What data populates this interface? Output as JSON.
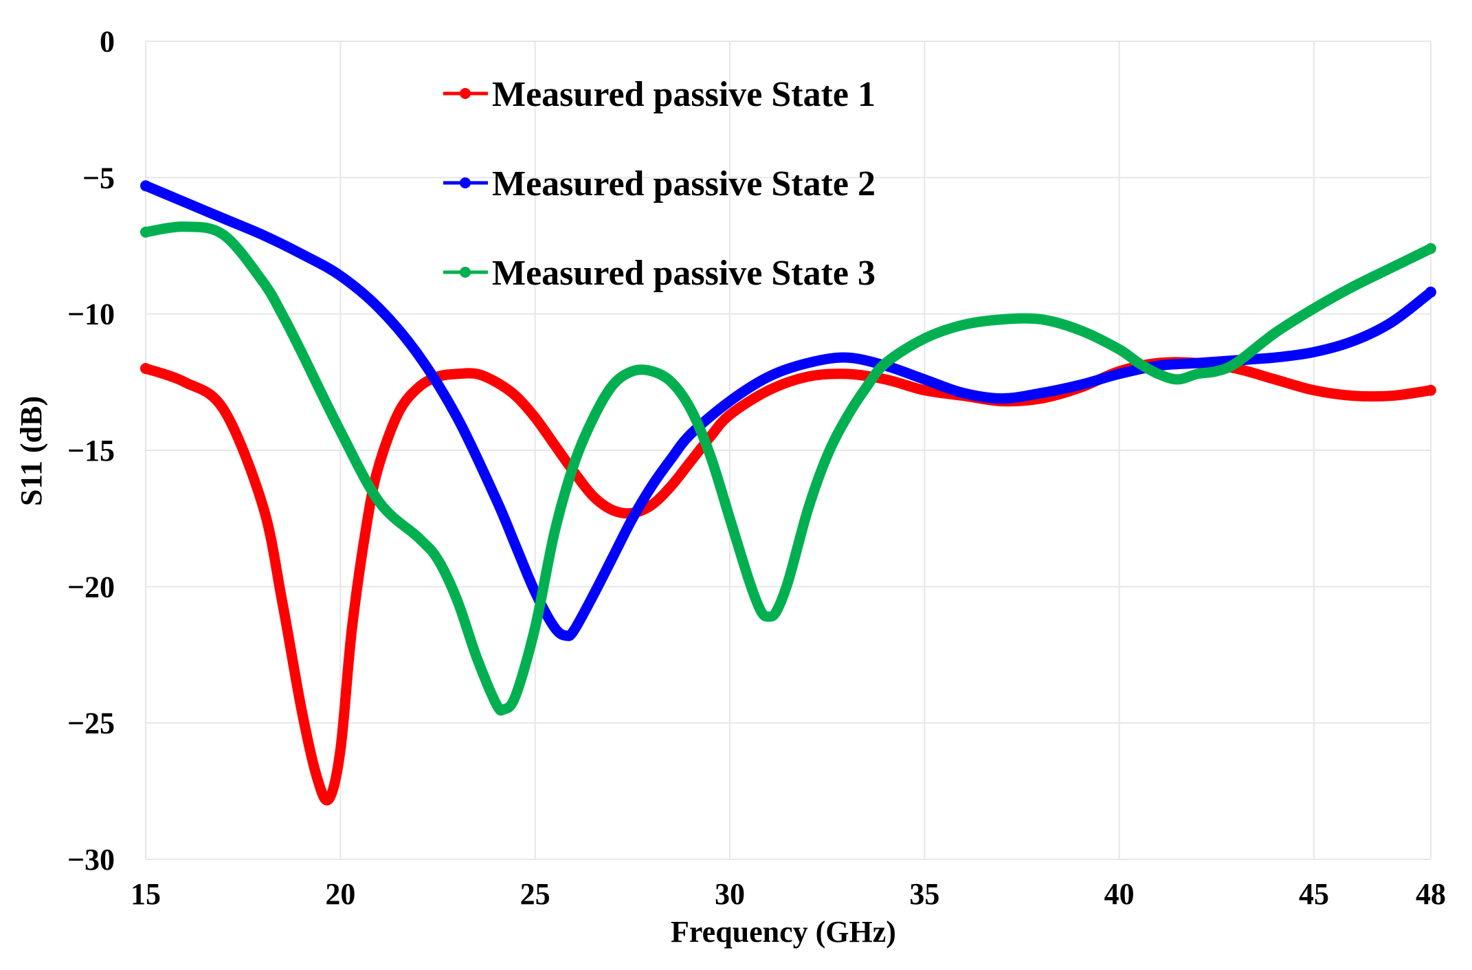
{
  "chart_data": {
    "type": "line",
    "title": "",
    "xlabel": "Frequency (GHz)",
    "ylabel": "S11 (dB)",
    "xlim": [
      15,
      48
    ],
    "ylim": [
      -30,
      0
    ],
    "x_ticks": [
      15,
      20,
      25,
      30,
      35,
      40,
      45,
      48
    ],
    "y_ticks": [
      0,
      -5,
      -10,
      -15,
      -20,
      -25,
      -30
    ],
    "x_tick_labels": [
      "15",
      "20",
      "25",
      "30",
      "35",
      "40",
      "45",
      "48"
    ],
    "y_tick_labels": [
      "0",
      "−5",
      "−10",
      "−15",
      "−20",
      "−25",
      "−30"
    ],
    "grid": true,
    "legend_position": "top-center",
    "series": [
      {
        "name": "Measured passive State 1",
        "color": "#ff0000",
        "x": [
          15,
          16,
          17,
          18,
          18.5,
          19,
          19.4,
          19.7,
          20,
          20.3,
          20.7,
          21,
          21.5,
          22,
          22.5,
          23,
          23.5,
          24,
          24.5,
          25,
          25.5,
          26,
          26.5,
          27,
          27.5,
          28,
          28.5,
          29,
          29.5,
          30,
          31,
          32,
          33,
          34,
          35,
          36,
          37,
          38,
          39,
          40,
          41,
          42,
          43,
          44,
          45,
          46,
          47,
          48
        ],
        "y": [
          -12.0,
          -12.5,
          -13.5,
          -17.0,
          -20.5,
          -24.5,
          -27.0,
          -27.8,
          -26.0,
          -21.5,
          -17.5,
          -15.5,
          -13.6,
          -12.7,
          -12.3,
          -12.2,
          -12.2,
          -12.5,
          -13.0,
          -13.8,
          -14.8,
          -15.8,
          -16.7,
          -17.2,
          -17.3,
          -17.0,
          -16.3,
          -15.4,
          -14.5,
          -13.7,
          -12.8,
          -12.3,
          -12.2,
          -12.4,
          -12.8,
          -13.0,
          -13.2,
          -13.1,
          -12.7,
          -12.1,
          -11.8,
          -11.8,
          -12.0,
          -12.4,
          -12.8,
          -13.0,
          -13.0,
          -12.8
        ]
      },
      {
        "name": "Measured passive State 2",
        "color": "#0000ff",
        "x": [
          15,
          16,
          17,
          18,
          19,
          20,
          21,
          22,
          23,
          24,
          24.5,
          25,
          25.5,
          25.8,
          26,
          26.5,
          27,
          27.5,
          28,
          28.5,
          29,
          30,
          31,
          32,
          33,
          34,
          35,
          36,
          37,
          38,
          39,
          40,
          41,
          42,
          43,
          44,
          45,
          46,
          47,
          48
        ],
        "y": [
          -5.3,
          -5.9,
          -6.5,
          -7.1,
          -7.8,
          -8.6,
          -9.8,
          -11.5,
          -13.8,
          -16.8,
          -18.5,
          -20.2,
          -21.5,
          -21.8,
          -21.6,
          -20.3,
          -18.9,
          -17.5,
          -16.3,
          -15.3,
          -14.4,
          -13.2,
          -12.3,
          -11.8,
          -11.6,
          -11.9,
          -12.4,
          -12.9,
          -13.1,
          -12.9,
          -12.6,
          -12.2,
          -11.9,
          -11.8,
          -11.7,
          -11.6,
          -11.4,
          -11.0,
          -10.3,
          -9.2
        ]
      },
      {
        "name": "Measured passive State 3",
        "color": "#00b050",
        "x": [
          15,
          16,
          17,
          18,
          18.5,
          19,
          20,
          21,
          22,
          22.5,
          23,
          23.5,
          24,
          24.2,
          24.5,
          25,
          25.5,
          26,
          26.5,
          27,
          27.5,
          28,
          28.5,
          29,
          29.5,
          30,
          30.5,
          30.8,
          31,
          31.2,
          31.5,
          32,
          32.5,
          33,
          33.5,
          34,
          35,
          36,
          37,
          38,
          39,
          40,
          40.5,
          41,
          41.5,
          42,
          42.5,
          43,
          44,
          45,
          46,
          47,
          48
        ],
        "y": [
          -7.0,
          -6.8,
          -7.1,
          -8.8,
          -10.0,
          -11.4,
          -14.3,
          -16.9,
          -18.2,
          -19.0,
          -20.5,
          -22.6,
          -24.3,
          -24.5,
          -24.0,
          -21.5,
          -18.0,
          -15.5,
          -13.8,
          -12.6,
          -12.1,
          -12.1,
          -12.5,
          -13.5,
          -15.2,
          -17.5,
          -19.8,
          -20.9,
          -21.1,
          -20.9,
          -19.8,
          -17.2,
          -15.2,
          -13.8,
          -12.7,
          -11.8,
          -10.9,
          -10.4,
          -10.2,
          -10.2,
          -10.6,
          -11.3,
          -11.8,
          -12.2,
          -12.4,
          -12.2,
          -12.1,
          -11.8,
          -10.7,
          -9.8,
          -9.0,
          -8.3,
          -7.6
        ]
      }
    ]
  }
}
